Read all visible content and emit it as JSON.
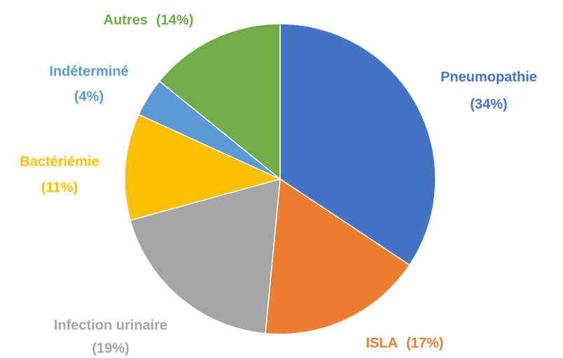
{
  "chart_data": {
    "type": "pie",
    "categories": [
      "Pneumopathie",
      "ISLA",
      "Infection urinaire",
      "Bactériémie",
      "Indéterminé",
      "Autres"
    ],
    "values": [
      34,
      17,
      19,
      11,
      4,
      14
    ],
    "value_labels": [
      "(34%)",
      "(17%)",
      "(19%)",
      "(11%)",
      "(4%)",
      "(14%)"
    ],
    "colors": [
      "#4472c4",
      "#ed7d31",
      "#a5a5a5",
      "#ffc000",
      "#5b9bd5",
      "#70ad47"
    ]
  }
}
